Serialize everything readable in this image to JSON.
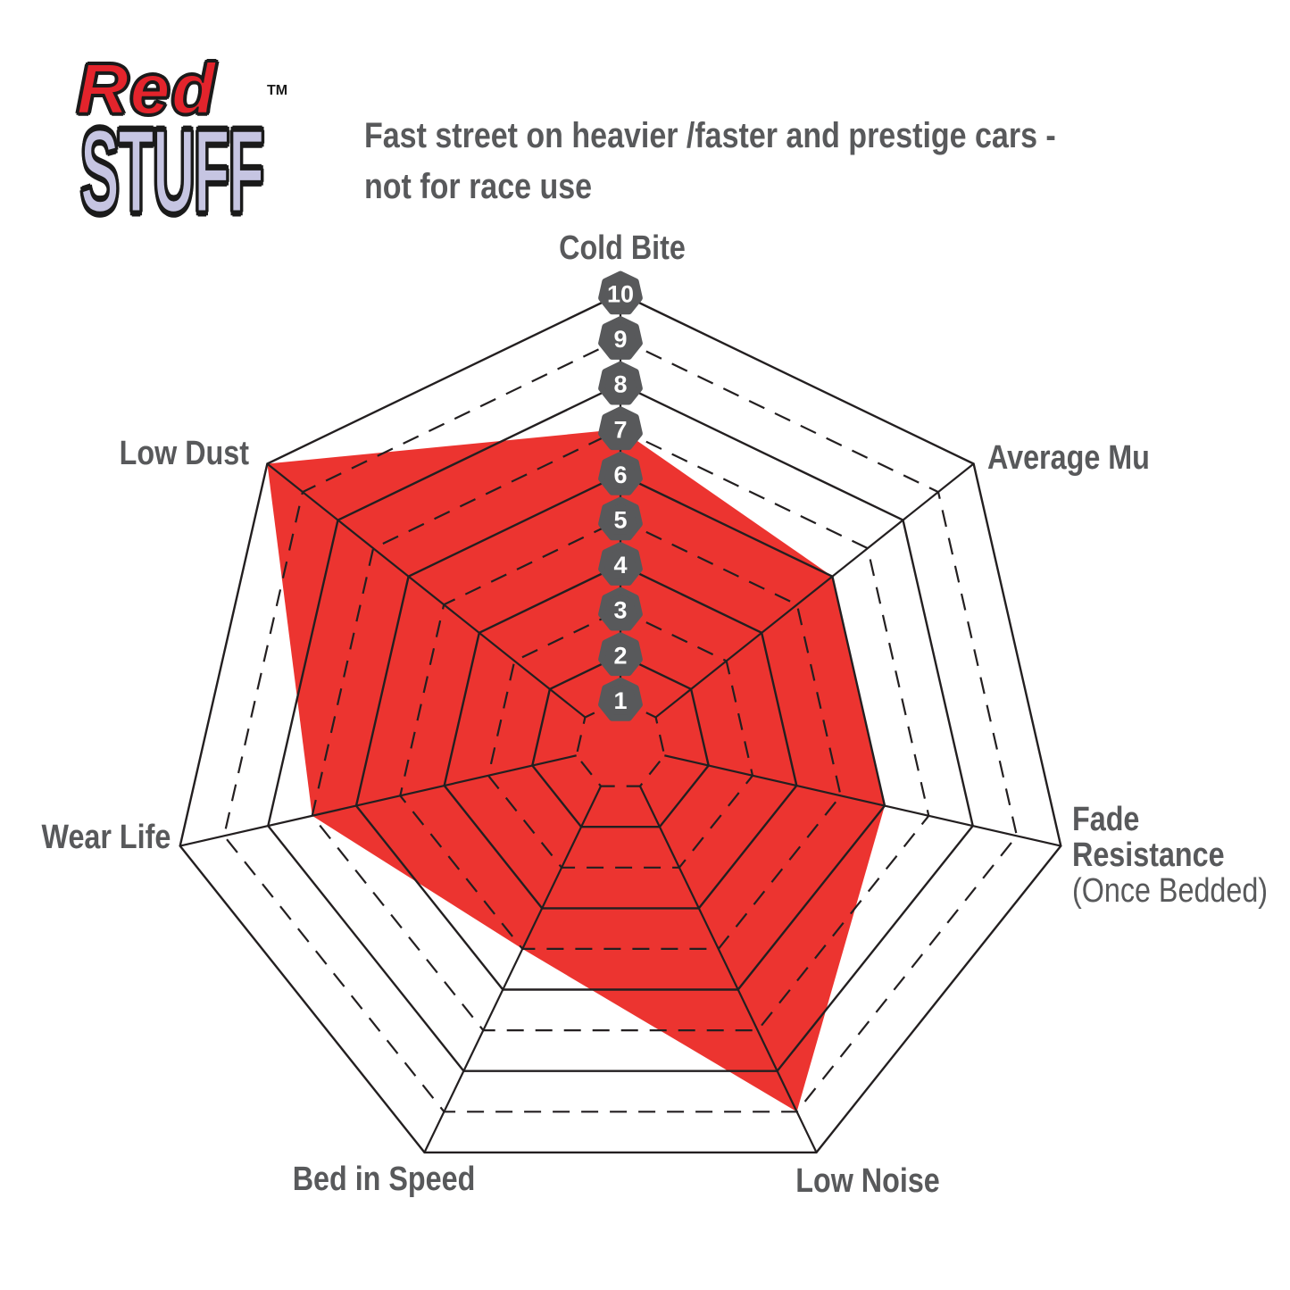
{
  "logo": {
    "red": "Red",
    "stuff": "STUFF",
    "tm": "TM"
  },
  "subtitle": {
    "line1": "Fast street on heavier /faster and prestige cars -",
    "line2": "not for race use"
  },
  "labels": {
    "cold_bite": "Cold Bite",
    "average_mu": "Average Mu",
    "fade_resistance_1": "Fade",
    "fade_resistance_2": "Resistance",
    "fade_resistance_sub": "(Once Bedded)",
    "low_noise": "Low Noise",
    "bed_in_speed": "Bed in Speed",
    "wear_life": "Wear Life",
    "low_dust": "Low Dust"
  },
  "colors": {
    "score_red": "#ec3430",
    "logo_red": "#e3242c",
    "logo_lavender": "#c6c5e2",
    "text_gray": "#58595b",
    "badge_gray": "#58595b",
    "badge_number_white": "#ffffff",
    "grid_black": "#231f20"
  },
  "chart_data": {
    "type": "radar",
    "categories": [
      "Cold Bite",
      "Average Mu",
      "Fade Resistance (Once Bedded)",
      "Low Noise",
      "Bed in Speed",
      "Wear Life",
      "Low Dust"
    ],
    "series": [
      {
        "name": "RedStuff",
        "values": [
          7,
          6,
          6,
          9,
          5,
          7,
          10
        ]
      }
    ],
    "scale": {
      "min": 1,
      "max": 10,
      "tick_labels": [
        "1",
        "2",
        "3",
        "4",
        "5",
        "6",
        "7",
        "8",
        "9",
        "10"
      ]
    },
    "grid": {
      "solid_rings": [
        2,
        4,
        6,
        8,
        10
      ],
      "dashed_rings": [
        1,
        3,
        5,
        7,
        9
      ],
      "spokes": 7
    },
    "legend": "none"
  }
}
